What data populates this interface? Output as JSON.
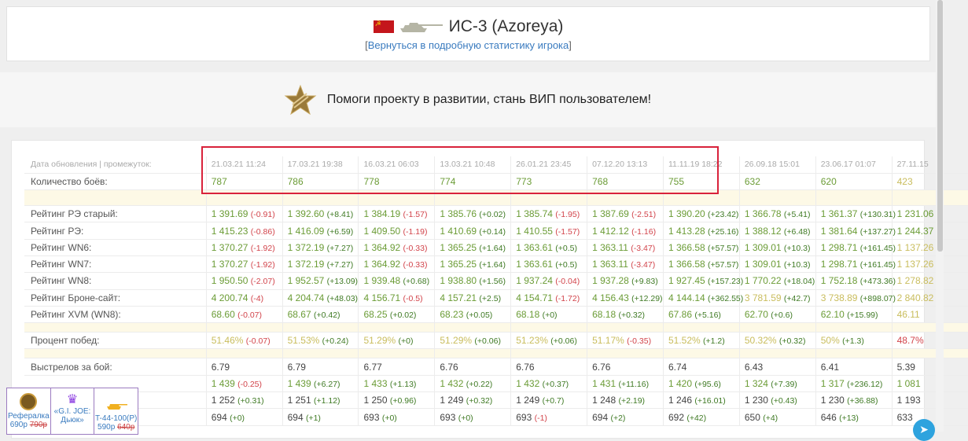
{
  "header": {
    "title": "ИС-3 (Azoreya)",
    "back_open": "[",
    "back_link": "Вернуться в подробную статистику игрока",
    "back_close": "]"
  },
  "vip": {
    "text": "Помоги проекту в развитии, стань ВИП пользователем!"
  },
  "colors": {
    "highlight_box": "#d9223b",
    "green": "#6b9c36",
    "yellow": "#c9bd5d",
    "red": "#d2444b"
  },
  "table": {
    "dates_label": "Дата обновления | промежуток:",
    "dates": [
      "21.03.21 11:24",
      "17.03.21 19:38",
      "16.03.21 06:03",
      "13.03.21 10:48",
      "26.01.21 23:45",
      "07.12.20 13:13",
      "11.11.19 18:22",
      "26.09.18 15:01",
      "23.06.17 01:07",
      "27.11.15"
    ],
    "battles_label": "Количество боёв:",
    "battles": [
      [
        "787",
        "g"
      ],
      [
        "786",
        "g"
      ],
      [
        "778",
        "g"
      ],
      [
        "774",
        "g"
      ],
      [
        "773",
        "g"
      ],
      [
        "768",
        "g"
      ],
      [
        "755",
        "g"
      ],
      [
        "632",
        "g"
      ],
      [
        "620",
        "g"
      ],
      [
        "423",
        "y"
      ]
    ],
    "groups": [
      [
        {
          "label": "Рейтинг РЭ старый:",
          "cells": [
            [
              "1 391.69",
              "g",
              "(-0.91)"
            ],
            [
              "1 392.60",
              "g",
              "(+8.41)"
            ],
            [
              "1 384.19",
              "g",
              "(-1.57)"
            ],
            [
              "1 385.76",
              "g",
              "(+0.02)"
            ],
            [
              "1 385.74",
              "g",
              "(-1.95)"
            ],
            [
              "1 387.69",
              "g",
              "(-2.51)"
            ],
            [
              "1 390.20",
              "g",
              "(+23.42)"
            ],
            [
              "1 366.78",
              "g",
              "(+5.41)"
            ],
            [
              "1 361.37",
              "g",
              "(+130.31)"
            ],
            [
              "1 231.06",
              "g",
              ""
            ]
          ]
        },
        {
          "label": "Рейтинг РЭ:",
          "cells": [
            [
              "1 415.23",
              "g",
              "(-0.86)"
            ],
            [
              "1 416.09",
              "g",
              "(+6.59)"
            ],
            [
              "1 409.50",
              "g",
              "(-1.19)"
            ],
            [
              "1 410.69",
              "g",
              "(+0.14)"
            ],
            [
              "1 410.55",
              "g",
              "(-1.57)"
            ],
            [
              "1 412.12",
              "g",
              "(-1.16)"
            ],
            [
              "1 413.28",
              "g",
              "(+25.16)"
            ],
            [
              "1 388.12",
              "g",
              "(+6.48)"
            ],
            [
              "1 381.64",
              "g",
              "(+137.27)"
            ],
            [
              "1 244.37",
              "g",
              ""
            ]
          ]
        },
        {
          "label": "Рейтинг WN6:",
          "cells": [
            [
              "1 370.27",
              "g",
              "(-1.92)"
            ],
            [
              "1 372.19",
              "g",
              "(+7.27)"
            ],
            [
              "1 364.92",
              "g",
              "(-0.33)"
            ],
            [
              "1 365.25",
              "g",
              "(+1.64)"
            ],
            [
              "1 363.61",
              "g",
              "(+0.5)"
            ],
            [
              "1 363.11",
              "g",
              "(-3.47)"
            ],
            [
              "1 366.58",
              "g",
              "(+57.57)"
            ],
            [
              "1 309.01",
              "g",
              "(+10.3)"
            ],
            [
              "1 298.71",
              "g",
              "(+161.45)"
            ],
            [
              "1 137.26",
              "y",
              ""
            ]
          ]
        },
        {
          "label": "Рейтинг WN7:",
          "cells": [
            [
              "1 370.27",
              "g",
              "(-1.92)"
            ],
            [
              "1 372.19",
              "g",
              "(+7.27)"
            ],
            [
              "1 364.92",
              "g",
              "(-0.33)"
            ],
            [
              "1 365.25",
              "g",
              "(+1.64)"
            ],
            [
              "1 363.61",
              "g",
              "(+0.5)"
            ],
            [
              "1 363.11",
              "g",
              "(-3.47)"
            ],
            [
              "1 366.58",
              "g",
              "(+57.57)"
            ],
            [
              "1 309.01",
              "g",
              "(+10.3)"
            ],
            [
              "1 298.71",
              "g",
              "(+161.45)"
            ],
            [
              "1 137.26",
              "y",
              ""
            ]
          ]
        },
        {
          "label": "Рейтинг WN8:",
          "cells": [
            [
              "1 950.50",
              "g",
              "(-2.07)"
            ],
            [
              "1 952.57",
              "g",
              "(+13.09)"
            ],
            [
              "1 939.48",
              "g",
              "(+0.68)"
            ],
            [
              "1 938.80",
              "g",
              "(+1.56)"
            ],
            [
              "1 937.24",
              "g",
              "(-0.04)"
            ],
            [
              "1 937.28",
              "g",
              "(+9.83)"
            ],
            [
              "1 927.45",
              "g",
              "(+157.23)"
            ],
            [
              "1 770.22",
              "g",
              "(+18.04)"
            ],
            [
              "1 752.18",
              "g",
              "(+473.36)"
            ],
            [
              "1 278.82",
              "y",
              ""
            ]
          ]
        },
        {
          "label": "Рейтинг Броне-сайт:",
          "cells": [
            [
              "4 200.74",
              "g",
              "(-4)"
            ],
            [
              "4 204.74",
              "g",
              "(+48.03)"
            ],
            [
              "4 156.71",
              "g",
              "(-0.5)"
            ],
            [
              "4 157.21",
              "g",
              "(+2.5)"
            ],
            [
              "4 154.71",
              "g",
              "(-1.72)"
            ],
            [
              "4 156.43",
              "g",
              "(+12.29)"
            ],
            [
              "4 144.14",
              "g",
              "(+362.55)"
            ],
            [
              "3 781.59",
              "y",
              "(+42.7)"
            ],
            [
              "3 738.89",
              "y",
              "(+898.07)"
            ],
            [
              "2 840.82",
              "y",
              ""
            ]
          ]
        },
        {
          "label": "Рейтинг XVM (WN8):",
          "cells": [
            [
              "68.60",
              "g",
              "(-0.07)"
            ],
            [
              "68.67",
              "g",
              "(+0.42)"
            ],
            [
              "68.25",
              "g",
              "(+0.02)"
            ],
            [
              "68.23",
              "g",
              "(+0.05)"
            ],
            [
              "68.18",
              "g",
              "(+0)"
            ],
            [
              "68.18",
              "g",
              "(+0.32)"
            ],
            [
              "67.86",
              "g",
              "(+5.16)"
            ],
            [
              "62.70",
              "g",
              "(+0.6)"
            ],
            [
              "62.10",
              "g",
              "(+15.99)"
            ],
            [
              "46.11",
              "y",
              ""
            ]
          ]
        }
      ],
      [
        {
          "label": "Процент побед:",
          "cells": [
            [
              "51.46%",
              "y",
              "(-0.07)"
            ],
            [
              "51.53%",
              "y",
              "(+0.24)"
            ],
            [
              "51.29%",
              "y",
              "(+0)"
            ],
            [
              "51.29%",
              "y",
              "(+0.06)"
            ],
            [
              "51.23%",
              "y",
              "(+0.06)"
            ],
            [
              "51.17%",
              "y",
              "(-0.35)"
            ],
            [
              "51.52%",
              "y",
              "(+1.2)"
            ],
            [
              "50.32%",
              "y",
              "(+0.32)"
            ],
            [
              "50%",
              "y",
              "(+1.3)"
            ],
            [
              "48.7%",
              "r",
              ""
            ]
          ]
        }
      ],
      [
        {
          "label": "Выстрелов за бой:",
          "cells": [
            [
              "6.79",
              "n",
              ""
            ],
            [
              "6.79",
              "n",
              ""
            ],
            [
              "6.77",
              "n",
              ""
            ],
            [
              "6.76",
              "n",
              ""
            ],
            [
              "6.76",
              "n",
              ""
            ],
            [
              "6.76",
              "n",
              ""
            ],
            [
              "6.74",
              "n",
              ""
            ],
            [
              "6.43",
              "n",
              ""
            ],
            [
              "6.41",
              "n",
              ""
            ],
            [
              "5.39",
              "n",
              ""
            ]
          ]
        },
        {
          "label": "",
          "cells": [
            [
              "1 439",
              "g",
              "(-0.25)"
            ],
            [
              "1 439",
              "g",
              "(+6.27)"
            ],
            [
              "1 433",
              "g",
              "(+1.13)"
            ],
            [
              "1 432",
              "g",
              "(+0.22)"
            ],
            [
              "1 432",
              "g",
              "(+0.37)"
            ],
            [
              "1 431",
              "g",
              "(+11.16)"
            ],
            [
              "1 420",
              "g",
              "(+95.6)"
            ],
            [
              "1 324",
              "g",
              "(+7.39)"
            ],
            [
              "1 317",
              "g",
              "(+236.12)"
            ],
            [
              "1 081",
              "g",
              ""
            ]
          ]
        },
        {
          "label": "",
          "cells": [
            [
              "1 252",
              "n",
              "(+0.31)"
            ],
            [
              "1 251",
              "n",
              "(+1.12)"
            ],
            [
              "1 250",
              "n",
              "(+0.96)"
            ],
            [
              "1 249",
              "n",
              "(+0.32)"
            ],
            [
              "1 249",
              "n",
              "(+0.7)"
            ],
            [
              "1 248",
              "n",
              "(+2.19)"
            ],
            [
              "1 246",
              "n",
              "(+16.01)"
            ],
            [
              "1 230",
              "n",
              "(+0.43)"
            ],
            [
              "1 230",
              "n",
              "(+36.88)"
            ],
            [
              "1 193",
              "n",
              ""
            ]
          ]
        },
        {
          "label": "",
          "cells": [
            [
              "694",
              "n",
              "(+0)"
            ],
            [
              "694",
              "n",
              "(+1)"
            ],
            [
              "693",
              "n",
              "(+0)"
            ],
            [
              "693",
              "n",
              "(+0)"
            ],
            [
              "693",
              "n",
              "(-1)"
            ],
            [
              "694",
              "n",
              "(+2)"
            ],
            [
              "692",
              "n",
              "(+42)"
            ],
            [
              "650",
              "n",
              "(+4)"
            ],
            [
              "646",
              "n",
              "(+13)"
            ],
            [
              "633",
              "n",
              ""
            ]
          ]
        }
      ]
    ]
  },
  "ads": [
    {
      "name": "Рефералка",
      "price": "690р",
      "old_price": "790р",
      "icon": "referral-medal-icon"
    },
    {
      "name": "«G.I. JOE: Дьюк»",
      "price": "",
      "old_price": "",
      "icon": "crown-icon"
    },
    {
      "name": "T-44-100(P)",
      "price": "590р",
      "old_price": "640р",
      "icon": "tank-icon"
    }
  ]
}
